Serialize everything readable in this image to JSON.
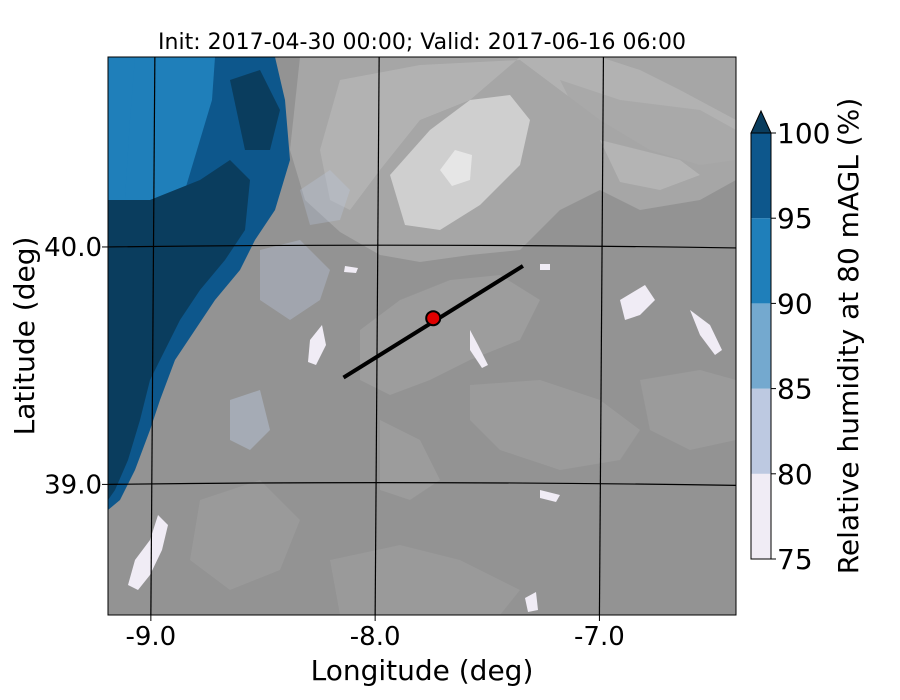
{
  "title": "Init: 2017-04-30 00:00; Valid: 2017-06-16 06:00",
  "map": {
    "xlabel": "Longitude (deg)",
    "ylabel": "Latitude (deg)",
    "x_ticks": [
      {
        "value": -9.0,
        "label": "-9.0"
      },
      {
        "value": -8.0,
        "label": "-8.0"
      },
      {
        "value": -7.0,
        "label": "-7.0"
      }
    ],
    "y_ticks": [
      {
        "value": 40.0,
        "label": "40.0"
      },
      {
        "value": 39.0,
        "label": "39.0"
      }
    ],
    "extent": {
      "lon": [
        -9.2,
        -6.4
      ],
      "lat": [
        38.45,
        40.8
      ]
    },
    "site_marker": {
      "lon": -7.75,
      "lat": 39.7,
      "color": "#e00000"
    },
    "transect": {
      "start": {
        "lon": -8.15,
        "lat": 39.45
      },
      "end": {
        "lon": -7.35,
        "lat": 39.92
      }
    },
    "land_color": "#939393",
    "relief_colors": [
      "#a6a6a6",
      "#b8b8b8",
      "#cfcfcf",
      "#e6e6e6"
    ]
  },
  "colorbar": {
    "label": "Relative humidity at 80 mAGL (%)",
    "levels": [
      75,
      80,
      85,
      90,
      95,
      100
    ],
    "tick_labels": [
      "75",
      "80",
      "85",
      "90",
      "95",
      "100"
    ],
    "colors": [
      "#f0ecf5",
      "#bdc9e1",
      "#74a9cf",
      "#1f7fba",
      "#0d578c"
    ],
    "extend_color": "#0a3d5e",
    "extend": "max"
  }
}
